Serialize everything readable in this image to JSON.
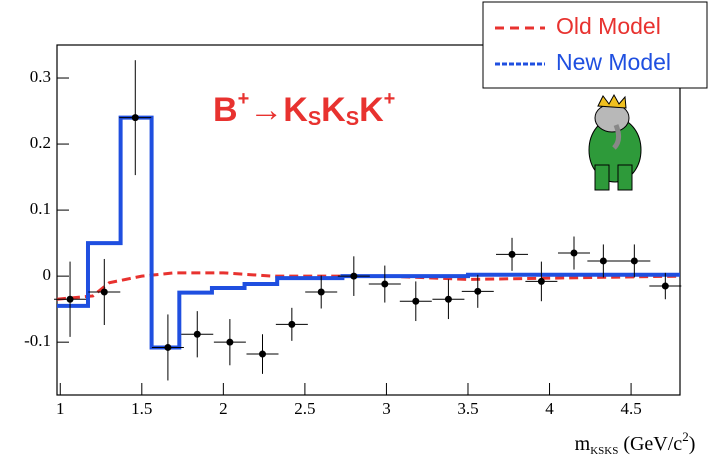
{
  "chart_data": {
    "type": "errorbar",
    "xlim": [
      0.98,
      4.8
    ],
    "ylim": [
      -0.18,
      0.35
    ],
    "xticks": [
      1,
      1.5,
      2,
      2.5,
      3,
      3.5,
      4,
      4.5
    ],
    "yticks": [
      -0.1,
      0,
      0.1,
      0.2,
      0.3
    ],
    "x_label_parts": [
      "m",
      "KSKS",
      " (GeV/c",
      "2",
      ")"
    ],
    "annotation_parts": [
      "B",
      "+",
      "→K",
      "S",
      "K",
      "S",
      "K",
      "+"
    ],
    "legend_loc": "upper right",
    "series": [
      {
        "name": "Old Model",
        "style": "dashed-line",
        "color": "#e8322f",
        "x": [
          0.98,
          1.2,
          1.3,
          1.5,
          1.7,
          2.0,
          2.3,
          3.0,
          3.5,
          4.8
        ],
        "values": [
          -0.035,
          -0.03,
          -0.01,
          0.0,
          0.005,
          0.005,
          0.0,
          0.0,
          -0.005,
          0.0
        ]
      },
      {
        "name": "New Model",
        "style": "step",
        "color": "#1f4fe0",
        "x": [
          0.98,
          1.17,
          1.37,
          1.56,
          1.73,
          1.93,
          2.13,
          2.33,
          2.73,
          3.5,
          4.8
        ],
        "values": [
          -0.045,
          0.05,
          0.24,
          -0.108,
          -0.025,
          -0.018,
          -0.012,
          -0.003,
          0.0,
          0.002,
          0.002
        ]
      },
      {
        "style": "points",
        "color": "#000000",
        "x": [
          1.06,
          1.27,
          1.46,
          1.66,
          1.84,
          2.04,
          2.24,
          2.42,
          2.6,
          2.8,
          2.99,
          3.18,
          3.38,
          3.56,
          3.77,
          3.95,
          4.15,
          4.33,
          4.52,
          4.71
        ],
        "values": [
          -0.035,
          -0.024,
          0.24,
          -0.108,
          -0.088,
          -0.1,
          -0.118,
          -0.073,
          -0.024,
          0.0,
          -0.012,
          -0.038,
          -0.035,
          -0.023,
          0.033,
          -0.008,
          0.035,
          0.023,
          0.023,
          -0.015
        ],
        "yerr": [
          0.057,
          0.05,
          0.087,
          0.05,
          0.035,
          0.035,
          0.03,
          0.025,
          0.025,
          0.03,
          0.028,
          0.03,
          0.03,
          0.025,
          0.025,
          0.03,
          0.025,
          0.025,
          0.025,
          0.02
        ]
      }
    ]
  }
}
